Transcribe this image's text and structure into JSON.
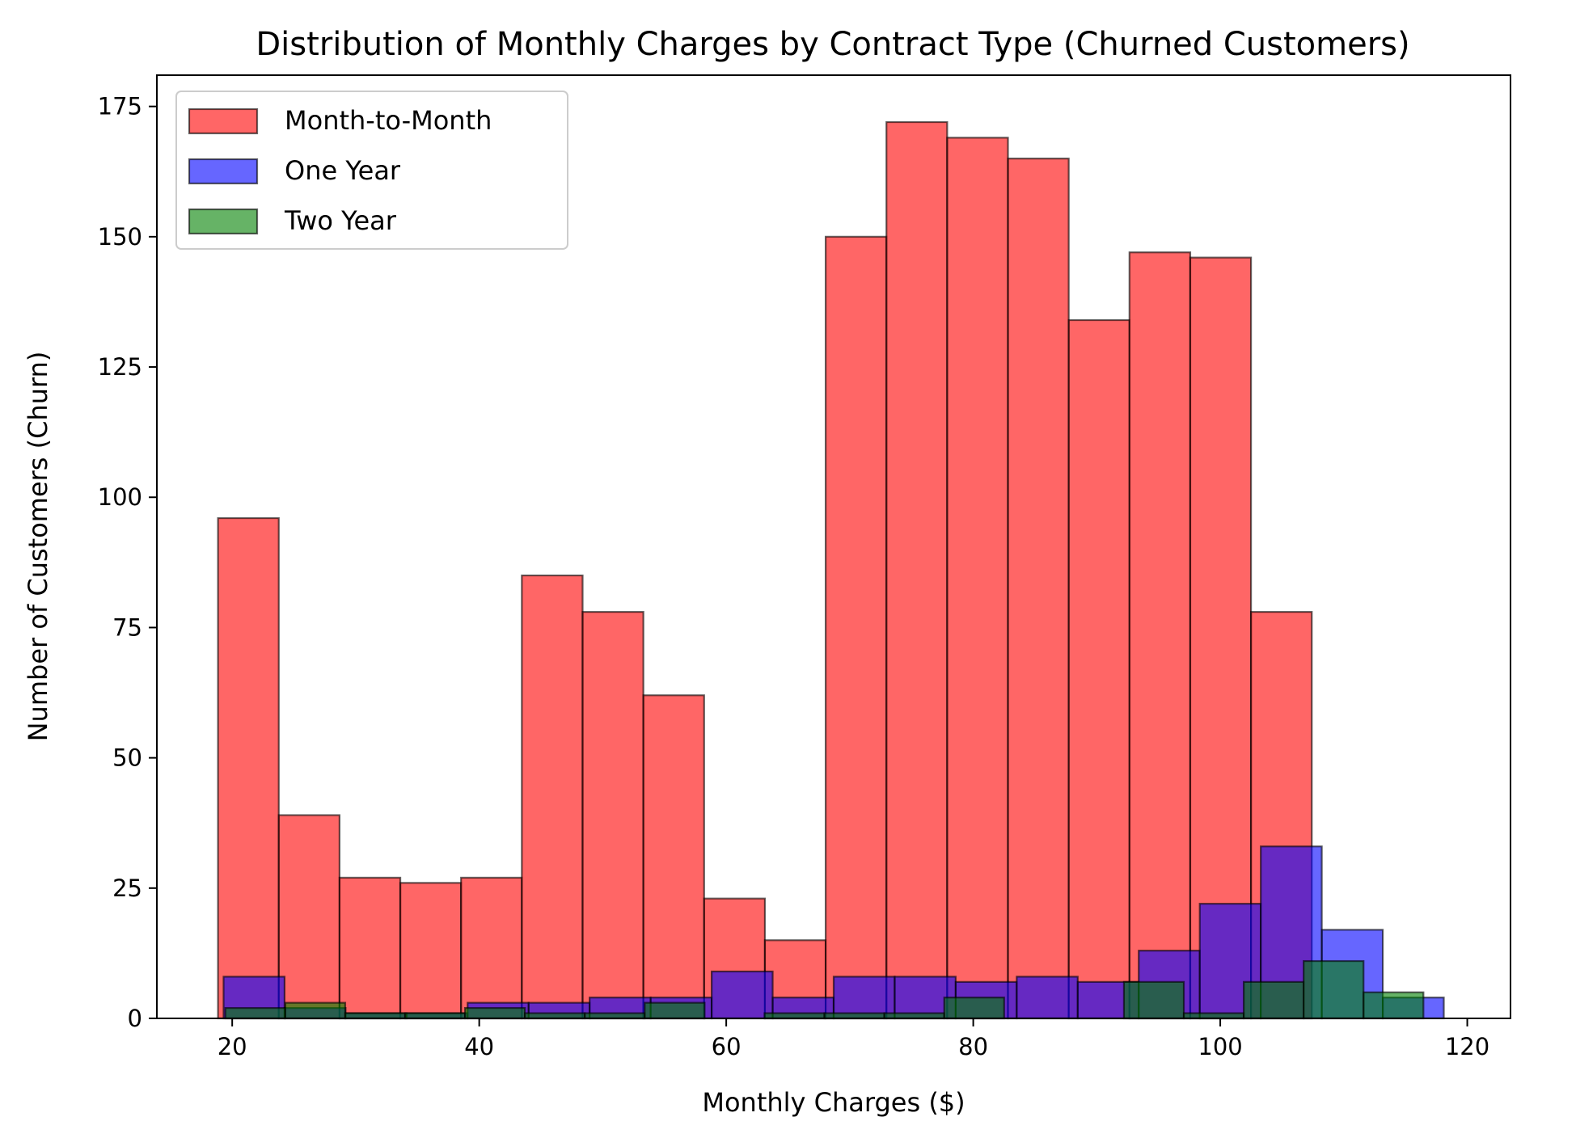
{
  "chart_data": {
    "type": "bar",
    "subtype": "histogram",
    "title": "Distribution of Monthly Charges by Contract Type (Churned Customers)",
    "xlabel": "Monthly Charges ($)",
    "ylabel": "Number of Customers (Churn)",
    "xlim": [
      13.9,
      123.5
    ],
    "ylim": [
      0,
      181
    ],
    "xticks": [
      20,
      40,
      60,
      80,
      100,
      120
    ],
    "yticks": [
      0,
      25,
      50,
      75,
      100,
      125,
      150,
      175
    ],
    "grid": false,
    "legend_position": "top-left",
    "series": [
      {
        "name": "Month-to-Month",
        "color": "#ff0000",
        "alpha": 0.6,
        "bins_start": 18.85,
        "bin_width": 4.92,
        "values": [
          96,
          39,
          27,
          26,
          27,
          85,
          78,
          62,
          23,
          15,
          150,
          172,
          169,
          165,
          134,
          147,
          146,
          78,
          0,
          0
        ]
      },
      {
        "name": "One Year",
        "color": "#0000ff",
        "alpha": 0.6,
        "bins_start": 19.3,
        "bin_width": 4.94,
        "values": [
          8,
          2,
          1,
          1,
          3,
          3,
          4,
          4,
          9,
          4,
          8,
          8,
          7,
          8,
          7,
          13,
          22,
          33,
          17,
          4
        ]
      },
      {
        "name": "Two Year",
        "color": "#008000",
        "alpha": 0.6,
        "bins_start": 19.45,
        "bin_width": 4.85,
        "values": [
          2,
          3,
          1,
          1,
          2,
          1,
          1,
          3,
          0,
          1,
          1,
          1,
          4,
          0,
          0,
          7,
          1,
          7,
          11,
          5
        ]
      }
    ]
  }
}
